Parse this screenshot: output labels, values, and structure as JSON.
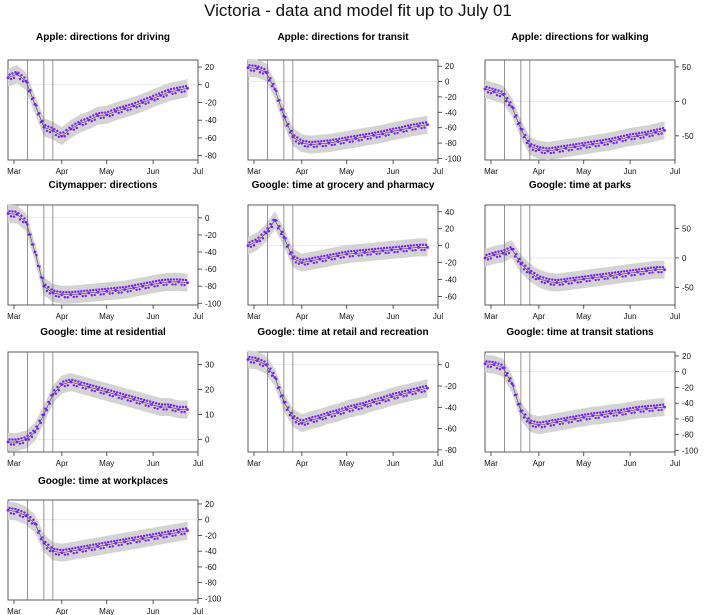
{
  "page_title": "Victoria - data and model fit up to July 01",
  "colors": {
    "points": "#7a1cff",
    "band": "#d3d3d3",
    "model_line": "#555555",
    "vlines": "#666666",
    "zero_line": "#e4e4e4"
  },
  "chart_data": [
    {
      "type": "scatter",
      "title": "Apple: directions for driving",
      "x_ticks": [
        "Mar",
        "Apr",
        "May",
        "Jun",
        "Jul"
      ],
      "y_ticks": [
        20,
        0,
        -20,
        -40,
        -60,
        -80
      ],
      "ylim": [
        -85,
        28
      ],
      "x": [
        0,
        6,
        12,
        18,
        24,
        30,
        36,
        42,
        48,
        54,
        60,
        66,
        72,
        78,
        84,
        90,
        96,
        102,
        108,
        114,
        120
      ],
      "y": [
        8,
        12,
        4,
        -22,
        -48,
        -52,
        -58,
        -50,
        -44,
        -40,
        -35,
        -34,
        -30,
        -27,
        -24,
        -20,
        -16,
        -12,
        -8,
        -6,
        -4
      ],
      "intervention_lines_x": [
        13,
        24,
        30
      ],
      "x_axis_ticks_pos": [
        4,
        36,
        66,
        97,
        127
      ],
      "series": [
        {
          "name": "",
          "values": []
        }
      ]
    },
    {
      "type": "scatter",
      "title": "Apple: directions for transit",
      "x_ticks": [
        "Mar",
        "Apr",
        "May",
        "Jun",
        "Jul"
      ],
      "y_ticks": [
        20,
        0,
        -20,
        -40,
        -60,
        -80,
        -100
      ],
      "ylim": [
        -102,
        28
      ],
      "x": [
        0,
        6,
        12,
        18,
        24,
        30,
        36,
        42,
        48,
        54,
        60,
        66,
        72,
        78,
        84,
        90,
        96,
        102,
        108,
        114,
        120
      ],
      "y": [
        18,
        17,
        12,
        -10,
        -45,
        -72,
        -80,
        -82,
        -81,
        -80,
        -78,
        -76,
        -74,
        -72,
        -70,
        -68,
        -65,
        -63,
        -60,
        -58,
        -56
      ],
      "intervention_lines_x": [
        13,
        24,
        30
      ],
      "x_axis_ticks_pos": [
        4,
        36,
        66,
        97,
        127
      ]
    },
    {
      "type": "scatter",
      "title": "Apple: directions for walking",
      "x_ticks": [
        "Mar",
        "Apr",
        "May",
        "Jun",
        "Jul"
      ],
      "y_ticks": [
        50,
        0,
        -50
      ],
      "ylim": [
        -85,
        60
      ],
      "x": [
        0,
        6,
        12,
        18,
        24,
        30,
        36,
        42,
        48,
        54,
        60,
        66,
        72,
        78,
        84,
        90,
        96,
        102,
        108,
        114,
        120
      ],
      "y": [
        18,
        14,
        10,
        -8,
        -40,
        -65,
        -70,
        -72,
        -70,
        -68,
        -66,
        -64,
        -62,
        -60,
        -58,
        -55,
        -52,
        -50,
        -48,
        -45,
        -42
      ],
      "intervention_lines_x": [
        13,
        24,
        30
      ],
      "x_axis_ticks_pos": [
        4,
        36,
        66,
        97,
        127
      ]
    },
    {
      "type": "scatter",
      "title": "Citymapper: directions",
      "x_ticks": [
        "Mar",
        "Apr",
        "May",
        "Jun",
        "Jul"
      ],
      "y_ticks": [
        0,
        -20,
        -40,
        -60,
        -80,
        -100
      ],
      "ylim": [
        -102,
        15
      ],
      "x": [
        0,
        6,
        12,
        18,
        24,
        30,
        36,
        42,
        48,
        54,
        60,
        66,
        72,
        78,
        84,
        90,
        96,
        102,
        108,
        114,
        120
      ],
      "y": [
        5,
        4,
        -5,
        -40,
        -80,
        -88,
        -90,
        -90,
        -89,
        -88,
        -87,
        -86,
        -85,
        -84,
        -82,
        -80,
        -78,
        -76,
        -75,
        -75,
        -76
      ],
      "intervention_lines_x": [
        13,
        24,
        30
      ],
      "x_axis_ticks_pos": [
        4,
        36,
        66,
        97,
        127
      ]
    },
    {
      "type": "scatter",
      "title": "Google: time at grocery and pharmacy",
      "x_ticks": [
        "Mar",
        "Apr",
        "May",
        "Jun",
        "Jul"
      ],
      "y_ticks": [
        40,
        20,
        0,
        -20,
        -40,
        -60
      ],
      "ylim": [
        -70,
        48
      ],
      "x": [
        0,
        6,
        12,
        18,
        24,
        30,
        36,
        42,
        48,
        54,
        60,
        66,
        72,
        78,
        84,
        90,
        96,
        102,
        108,
        114,
        120
      ],
      "y": [
        0,
        5,
        15,
        30,
        10,
        -15,
        -20,
        -18,
        -16,
        -14,
        -12,
        -10,
        -9,
        -8,
        -7,
        -6,
        -5,
        -4,
        -3,
        -2,
        -2
      ],
      "intervention_lines_x": [
        13,
        24,
        30
      ],
      "x_axis_ticks_pos": [
        4,
        36,
        66,
        97,
        127
      ]
    },
    {
      "type": "scatter",
      "title": "Google: time at parks",
      "x_ticks": [
        "Mar",
        "Apr",
        "May",
        "Jun",
        "Jul"
      ],
      "y_ticks": [
        50,
        0,
        -50
      ],
      "ylim": [
        -80,
        90
      ],
      "x": [
        0,
        6,
        12,
        18,
        24,
        30,
        36,
        42,
        48,
        54,
        60,
        66,
        72,
        78,
        84,
        90,
        96,
        102,
        108,
        114,
        120
      ],
      "y": [
        0,
        5,
        8,
        15,
        -10,
        -25,
        -35,
        -40,
        -42,
        -40,
        -38,
        -36,
        -34,
        -32,
        -30,
        -28,
        -26,
        -24,
        -22,
        -20,
        -20
      ],
      "intervention_lines_x": [
        13,
        24,
        30
      ],
      "x_axis_ticks_pos": [
        4,
        36,
        66,
        97,
        127
      ]
    },
    {
      "type": "scatter",
      "title": "Google: time at residential",
      "x_ticks": [
        "Mar",
        "Apr",
        "May",
        "Jun",
        "Jul"
      ],
      "y_ticks": [
        30,
        20,
        10,
        0
      ],
      "ylim": [
        -5,
        35
      ],
      "x": [
        0,
        6,
        12,
        18,
        24,
        30,
        36,
        42,
        48,
        54,
        60,
        66,
        72,
        78,
        84,
        90,
        96,
        102,
        108,
        114,
        120
      ],
      "y": [
        -1,
        -1,
        0,
        3,
        10,
        18,
        22,
        23,
        22,
        21,
        20,
        19,
        18,
        17,
        16,
        15,
        14,
        13,
        13,
        12,
        12
      ],
      "intervention_lines_x": [
        13,
        24,
        30
      ],
      "x_axis_ticks_pos": [
        4,
        36,
        66,
        97,
        127
      ]
    },
    {
      "type": "scatter",
      "title": "Google: time at retail and recreation",
      "x_ticks": [
        "Mar",
        "Apr",
        "May",
        "Jun",
        "Jul"
      ],
      "y_ticks": [
        0,
        -20,
        -40,
        -60,
        -80
      ],
      "ylim": [
        -82,
        12
      ],
      "x": [
        0,
        6,
        12,
        18,
        24,
        30,
        36,
        42,
        48,
        54,
        60,
        66,
        72,
        78,
        84,
        90,
        96,
        102,
        108,
        114,
        120
      ],
      "y": [
        5,
        4,
        0,
        -12,
        -35,
        -50,
        -55,
        -52,
        -50,
        -47,
        -45,
        -42,
        -40,
        -38,
        -35,
        -33,
        -30,
        -28,
        -26,
        -24,
        -22
      ],
      "intervention_lines_x": [
        13,
        24,
        30
      ],
      "x_axis_ticks_pos": [
        4,
        36,
        66,
        97,
        127
      ]
    },
    {
      "type": "scatter",
      "title": "Google: time at transit stations",
      "x_ticks": [
        "Mar",
        "Apr",
        "May",
        "Jun",
        "Jul"
      ],
      "y_ticks": [
        20,
        0,
        -20,
        -40,
        -60,
        -80,
        -100
      ],
      "ylim": [
        -102,
        25
      ],
      "x": [
        0,
        6,
        12,
        18,
        24,
        30,
        36,
        42,
        48,
        54,
        60,
        66,
        72,
        78,
        84,
        90,
        96,
        102,
        108,
        114,
        120
      ],
      "y": [
        10,
        9,
        5,
        -15,
        -50,
        -65,
        -68,
        -66,
        -64,
        -62,
        -60,
        -58,
        -56,
        -55,
        -53,
        -52,
        -50,
        -48,
        -47,
        -46,
        -45
      ],
      "intervention_lines_x": [
        13,
        24,
        30
      ],
      "x_axis_ticks_pos": [
        4,
        36,
        66,
        97,
        127
      ]
    },
    {
      "type": "scatter",
      "title": "Google: time at workplaces",
      "x_ticks": [
        "Mar",
        "Apr",
        "May",
        "Jun",
        "Jul"
      ],
      "y_ticks": [
        20,
        0,
        -20,
        -40,
        -60,
        -80,
        -100
      ],
      "ylim": [
        -102,
        25
      ],
      "x": [
        0,
        6,
        12,
        18,
        24,
        30,
        36,
        42,
        48,
        54,
        60,
        66,
        72,
        78,
        84,
        90,
        96,
        102,
        108,
        114,
        120
      ],
      "y": [
        12,
        10,
        5,
        -5,
        -30,
        -40,
        -42,
        -40,
        -38,
        -36,
        -34,
        -32,
        -30,
        -28,
        -26,
        -24,
        -22,
        -20,
        -18,
        -16,
        -14
      ],
      "intervention_lines_x": [
        13,
        24,
        30
      ],
      "x_axis_ticks_pos": [
        4,
        36,
        66,
        97,
        127
      ]
    }
  ]
}
